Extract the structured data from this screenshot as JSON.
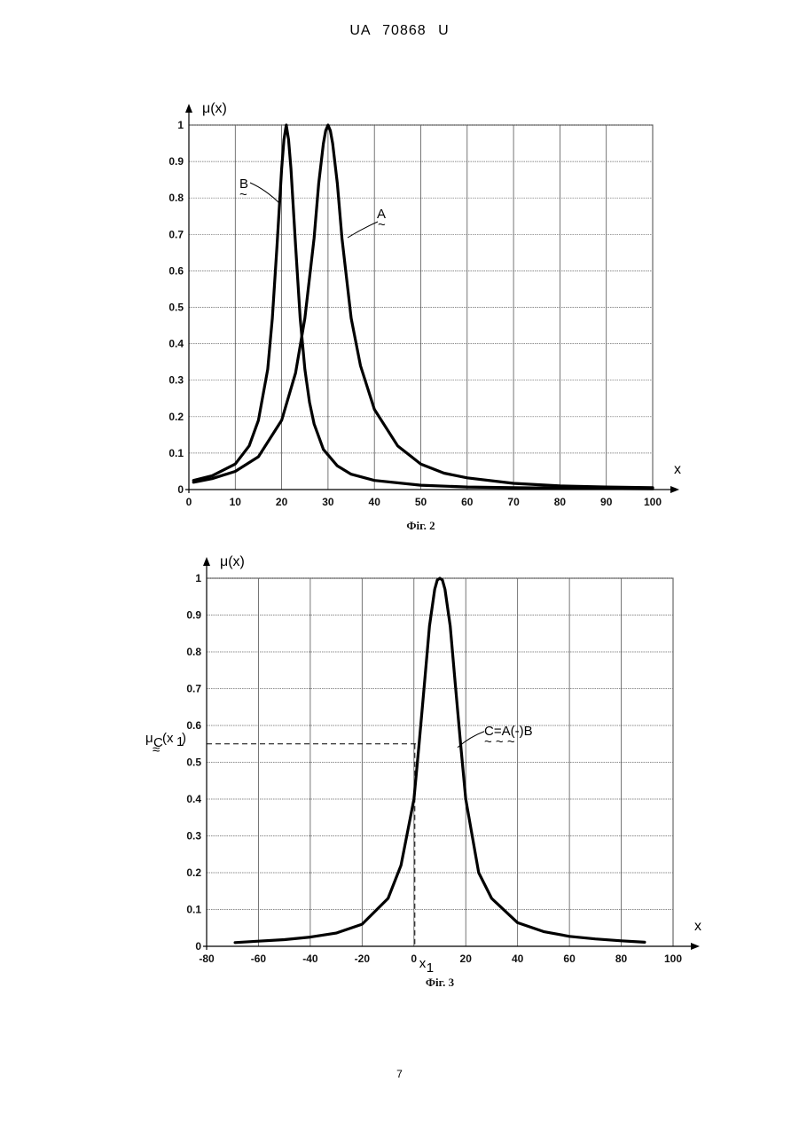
{
  "header": {
    "doc_id": "UA   70868   U"
  },
  "page": {
    "number": "7"
  },
  "chart_data": [
    {
      "type": "line",
      "caption": "Фіг. 2",
      "ylabel": "μ(x)",
      "xlabel": "x",
      "xlim": [
        0,
        100
      ],
      "ylim": [
        0,
        1
      ],
      "xticks": [
        0,
        10,
        20,
        30,
        40,
        50,
        60,
        70,
        80,
        90,
        100
      ],
      "yticks": [
        0,
        0.1,
        0.2,
        0.3,
        0.4,
        0.5,
        0.6,
        0.7,
        0.8,
        0.9,
        1
      ],
      "grid": true,
      "series": [
        {
          "name": "B",
          "x": [
            1,
            5,
            10,
            13,
            15,
            17,
            18,
            19,
            20,
            20.5,
            21,
            21.5,
            22,
            23,
            24,
            25,
            26,
            27,
            29,
            32,
            35,
            40,
            50,
            60,
            70,
            80,
            90,
            100
          ],
          "y": [
            0.025,
            0.038,
            0.07,
            0.12,
            0.19,
            0.33,
            0.47,
            0.67,
            0.88,
            0.96,
            1.0,
            0.96,
            0.88,
            0.67,
            0.47,
            0.33,
            0.24,
            0.18,
            0.11,
            0.065,
            0.042,
            0.025,
            0.012,
            0.007,
            0.005,
            0.004,
            0.003,
            0.002
          ]
        },
        {
          "name": "A",
          "x": [
            1,
            5,
            10,
            15,
            20,
            23,
            25,
            27,
            28,
            29,
            29.5,
            30,
            30.5,
            31,
            32,
            33,
            35,
            37,
            40,
            45,
            50,
            55,
            60,
            70,
            80,
            90,
            100
          ],
          "y": [
            0.02,
            0.03,
            0.05,
            0.09,
            0.19,
            0.32,
            0.47,
            0.69,
            0.84,
            0.95,
            0.985,
            1.0,
            0.985,
            0.95,
            0.84,
            0.69,
            0.47,
            0.34,
            0.22,
            0.12,
            0.07,
            0.045,
            0.032,
            0.017,
            0.01,
            0.007,
            0.005
          ]
        }
      ]
    },
    {
      "type": "line",
      "caption": "Фіг. 3",
      "ylabel": "μ(x)",
      "xlabel": "x",
      "xlim": [
        -80,
        100
      ],
      "ylim": [
        0,
        1
      ],
      "xticks": [
        -80,
        -60,
        -40,
        -20,
        0,
        20,
        40,
        60,
        80,
        100
      ],
      "yticks": [
        0,
        0.1,
        0.2,
        0.3,
        0.4,
        0.5,
        0.6,
        0.7,
        0.8,
        0.9,
        1
      ],
      "grid": true,
      "series": [
        {
          "name": "C=A(-)B",
          "x": [
            -69,
            -60,
            -50,
            -40,
            -30,
            -20,
            -10,
            -5,
            0,
            2,
            4,
            6,
            8,
            9,
            10,
            11,
            12,
            14,
            16,
            18,
            20,
            25,
            30,
            40,
            50,
            60,
            70,
            80,
            89
          ],
          "y": [
            0.01,
            0.014,
            0.018,
            0.025,
            0.036,
            0.06,
            0.13,
            0.22,
            0.4,
            0.55,
            0.71,
            0.87,
            0.97,
            0.995,
            1.0,
            0.995,
            0.97,
            0.87,
            0.71,
            0.55,
            0.4,
            0.2,
            0.13,
            0.064,
            0.04,
            0.027,
            0.02,
            0.015,
            0.011
          ]
        }
      ],
      "annotations": {
        "marker_x_label": "x",
        "marker_x_sub": "1",
        "marker_x_value": 0,
        "marker_y_value": 0.55,
        "marker_y_label": "μ",
        "marker_y_sub": "C",
        "marker_y_arg": "(x",
        "marker_y_arg_sub": "1",
        "marker_y_close": ")"
      }
    }
  ]
}
